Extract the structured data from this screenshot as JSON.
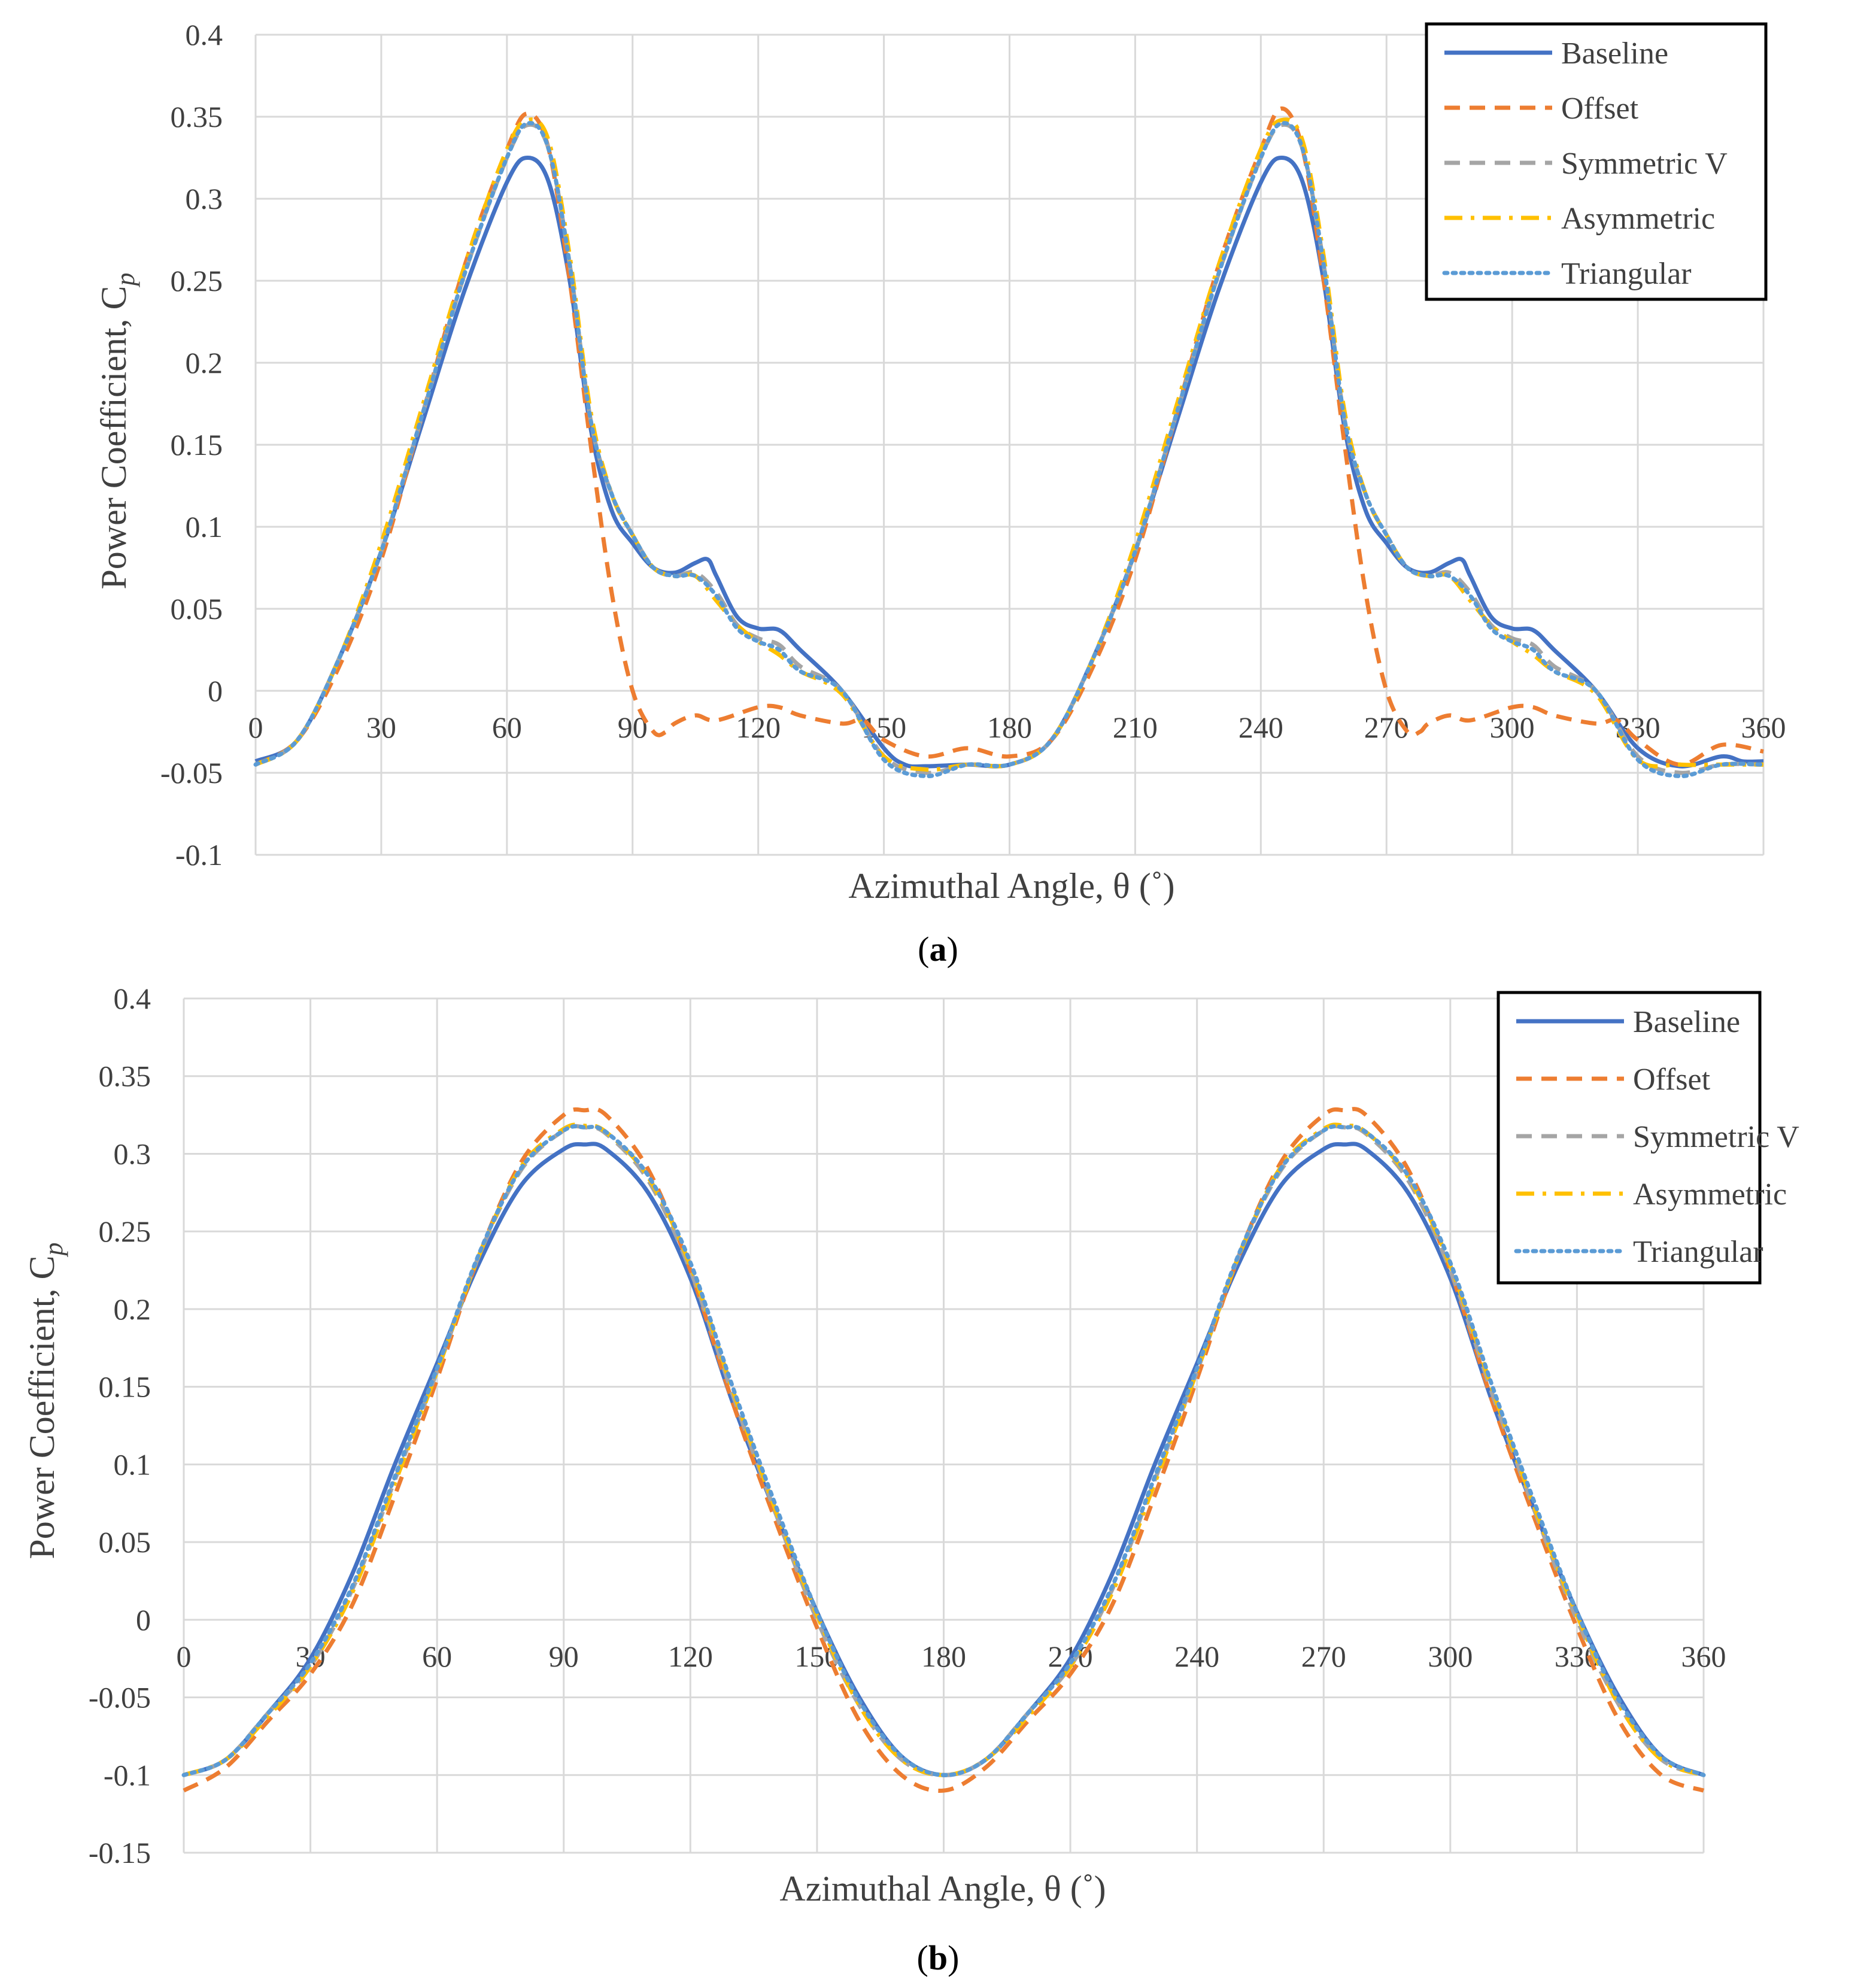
{
  "colors": {
    "Baseline": "#4472C4",
    "Offset": "#ED7D31",
    "Symmetric V": "#A5A5A5",
    "Asymmetric": "#FFC000",
    "Triangular": "#5B9BD5",
    "grid": "#D9D9D9",
    "axis_text": "#404040"
  },
  "chart_data": [
    {
      "type": "line",
      "caption_letter": "a",
      "xlabel": "Azimuthal Angle, θ (˚)",
      "ylabel": "Power Coefficient, C",
      "ylabel_sub": "p",
      "xlim": [
        0,
        360
      ],
      "ylim": [
        -0.1,
        0.4
      ],
      "x_ticks": [
        "0",
        "30",
        "60",
        "90",
        "120",
        "150",
        "180",
        "210",
        "240",
        "270",
        "300",
        "330",
        "360"
      ],
      "y_ticks": [
        "-0.1",
        "-0.05",
        "0",
        "0.05",
        "0.1",
        "0.15",
        "0.2",
        "0.25",
        "0.3",
        "0.35",
        "0.4"
      ],
      "legend": [
        "Baseline",
        "Offset",
        "Symmetric V",
        "Asymmetric",
        "Triangular"
      ],
      "series": [
        {
          "name": "Baseline",
          "style": "solid",
          "x": [
            0,
            10,
            20,
            30,
            40,
            50,
            60,
            65,
            70,
            75,
            80,
            85,
            90,
            95,
            100,
            105,
            108,
            110,
            115,
            120,
            125,
            130,
            140,
            150,
            155,
            160,
            170,
            180,
            190,
            200,
            210,
            220,
            230,
            240,
            245,
            250,
            255,
            260,
            265,
            270,
            275,
            280,
            285,
            288,
            290,
            295,
            300,
            305,
            310,
            320,
            330,
            340,
            350,
            355,
            360
          ],
          "y": [
            -0.043,
            -0.03,
            0.02,
            0.085,
            0.165,
            0.245,
            0.31,
            0.325,
            0.31,
            0.25,
            0.16,
            0.11,
            0.09,
            0.075,
            0.072,
            0.078,
            0.08,
            0.07,
            0.045,
            0.038,
            0.037,
            0.025,
            0.0,
            -0.035,
            -0.045,
            -0.046,
            -0.045,
            -0.045,
            -0.03,
            0.02,
            0.085,
            0.165,
            0.245,
            0.31,
            0.325,
            0.31,
            0.25,
            0.16,
            0.11,
            0.09,
            0.075,
            0.072,
            0.078,
            0.08,
            0.07,
            0.045,
            0.038,
            0.037,
            0.025,
            0.0,
            -0.035,
            -0.046,
            -0.04,
            -0.043,
            -0.043
          ]
        },
        {
          "name": "Offset",
          "style": "dashed",
          "x": [
            0,
            10,
            20,
            30,
            40,
            50,
            60,
            65,
            70,
            75,
            80,
            85,
            90,
            95,
            98,
            100,
            105,
            110,
            120,
            125,
            130,
            140,
            145,
            150,
            160,
            170,
            180,
            190,
            200,
            210,
            220,
            230,
            240,
            245,
            250,
            255,
            260,
            265,
            270,
            275,
            278,
            280,
            285,
            290,
            300,
            305,
            310,
            320,
            325,
            330,
            340,
            350,
            360
          ],
          "y": [
            -0.045,
            -0.03,
            0.015,
            0.08,
            0.17,
            0.26,
            0.33,
            0.352,
            0.33,
            0.25,
            0.15,
            0.06,
            0.0,
            -0.025,
            -0.025,
            -0.02,
            -0.015,
            -0.018,
            -0.01,
            -0.01,
            -0.015,
            -0.02,
            -0.018,
            -0.03,
            -0.04,
            -0.035,
            -0.04,
            -0.03,
            0.015,
            0.08,
            0.17,
            0.26,
            0.33,
            0.355,
            0.33,
            0.25,
            0.15,
            0.06,
            0.0,
            -0.025,
            -0.025,
            -0.02,
            -0.015,
            -0.018,
            -0.01,
            -0.01,
            -0.015,
            -0.02,
            -0.018,
            -0.03,
            -0.045,
            -0.033,
            -0.037
          ]
        },
        {
          "name": "Symmetric V",
          "style": "dashed",
          "x": [
            0,
            10,
            20,
            30,
            40,
            50,
            60,
            65,
            70,
            75,
            80,
            85,
            90,
            95,
            100,
            105,
            110,
            115,
            120,
            125,
            130,
            140,
            150,
            160,
            170,
            180,
            190,
            200,
            210,
            220,
            230,
            240,
            245,
            250,
            255,
            260,
            265,
            270,
            275,
            280,
            285,
            290,
            295,
            300,
            305,
            310,
            320,
            330,
            340,
            350,
            360
          ],
          "y": [
            -0.045,
            -0.03,
            0.02,
            0.085,
            0.17,
            0.255,
            0.325,
            0.345,
            0.33,
            0.26,
            0.165,
            0.12,
            0.095,
            0.075,
            0.07,
            0.072,
            0.06,
            0.04,
            0.032,
            0.028,
            0.015,
            0.0,
            -0.04,
            -0.05,
            -0.045,
            -0.045,
            -0.03,
            0.02,
            0.085,
            0.17,
            0.255,
            0.325,
            0.345,
            0.33,
            0.26,
            0.165,
            0.12,
            0.095,
            0.075,
            0.07,
            0.072,
            0.06,
            0.04,
            0.032,
            0.028,
            0.015,
            0.0,
            -0.04,
            -0.05,
            -0.045,
            -0.045
          ]
        },
        {
          "name": "Asymmetric",
          "style": "dashdot",
          "x": [
            0,
            10,
            20,
            30,
            40,
            50,
            60,
            65,
            70,
            75,
            80,
            85,
            90,
            95,
            100,
            105,
            110,
            115,
            120,
            125,
            130,
            140,
            150,
            160,
            170,
            180,
            190,
            200,
            210,
            220,
            230,
            240,
            245,
            250,
            255,
            260,
            265,
            270,
            275,
            280,
            285,
            290,
            295,
            300,
            305,
            310,
            320,
            330,
            340,
            350,
            360
          ],
          "y": [
            -0.045,
            -0.03,
            0.02,
            0.09,
            0.175,
            0.26,
            0.33,
            0.348,
            0.335,
            0.265,
            0.17,
            0.12,
            0.095,
            0.075,
            0.07,
            0.07,
            0.055,
            0.04,
            0.03,
            0.022,
            0.012,
            -0.002,
            -0.04,
            -0.048,
            -0.045,
            -0.045,
            -0.03,
            0.02,
            0.09,
            0.175,
            0.26,
            0.33,
            0.348,
            0.335,
            0.265,
            0.17,
            0.12,
            0.095,
            0.075,
            0.07,
            0.07,
            0.055,
            0.04,
            0.03,
            0.022,
            0.012,
            -0.002,
            -0.042,
            -0.045,
            -0.045,
            -0.045
          ]
        },
        {
          "name": "Triangular",
          "style": "dotted",
          "x": [
            0,
            10,
            20,
            30,
            40,
            50,
            60,
            65,
            70,
            75,
            80,
            85,
            90,
            95,
            100,
            105,
            110,
            115,
            120,
            125,
            130,
            140,
            150,
            160,
            170,
            180,
            190,
            200,
            210,
            220,
            230,
            240,
            245,
            250,
            255,
            260,
            265,
            270,
            275,
            280,
            285,
            290,
            295,
            300,
            305,
            310,
            320,
            330,
            340,
            350,
            360
          ],
          "y": [
            -0.045,
            -0.03,
            0.02,
            0.085,
            0.17,
            0.255,
            0.325,
            0.346,
            0.33,
            0.26,
            0.165,
            0.12,
            0.095,
            0.075,
            0.07,
            0.07,
            0.058,
            0.038,
            0.03,
            0.025,
            0.012,
            0.0,
            -0.042,
            -0.052,
            -0.045,
            -0.045,
            -0.03,
            0.02,
            0.085,
            0.17,
            0.255,
            0.325,
            0.346,
            0.33,
            0.26,
            0.165,
            0.12,
            0.095,
            0.075,
            0.07,
            0.07,
            0.058,
            0.038,
            0.03,
            0.025,
            0.012,
            0.0,
            -0.042,
            -0.052,
            -0.045,
            -0.045
          ]
        }
      ]
    },
    {
      "type": "line",
      "caption_letter": "b",
      "xlabel": "Azimuthal Angle, θ (˚)",
      "ylabel": "Power Coefficient, C",
      "ylabel_sub": "p",
      "xlim": [
        0,
        360
      ],
      "ylim": [
        -0.15,
        0.4
      ],
      "x_ticks": [
        "0",
        "30",
        "60",
        "90",
        "120",
        "150",
        "180",
        "210",
        "240",
        "270",
        "300",
        "330",
        "360"
      ],
      "y_ticks": [
        "-0.15",
        "-0.1",
        "-0.05",
        "0",
        "0.05",
        "0.1",
        "0.15",
        "0.2",
        "0.25",
        "0.3",
        "0.35",
        "0.4"
      ],
      "legend": [
        "Baseline",
        "Offset",
        "Symmetric V",
        "Asymmetric",
        "Triangular"
      ],
      "series": [
        {
          "name": "Baseline",
          "style": "solid",
          "x": [
            0,
            10,
            20,
            30,
            40,
            50,
            60,
            70,
            80,
            90,
            95,
            100,
            110,
            120,
            130,
            140,
            150,
            160,
            170,
            180,
            190,
            200,
            210,
            220,
            230,
            240,
            250,
            260,
            270,
            275,
            280,
            290,
            300,
            310,
            320,
            330,
            340,
            350,
            360
          ],
          "y": [
            -0.1,
            -0.09,
            -0.06,
            -0.025,
            0.03,
            0.1,
            0.165,
            0.23,
            0.28,
            0.303,
            0.306,
            0.303,
            0.275,
            0.22,
            0.14,
            0.07,
            0.005,
            -0.05,
            -0.088,
            -0.1,
            -0.09,
            -0.06,
            -0.025,
            0.03,
            0.1,
            0.165,
            0.23,
            0.28,
            0.303,
            0.306,
            0.303,
            0.275,
            0.22,
            0.14,
            0.07,
            0.005,
            -0.05,
            -0.088,
            -0.1
          ]
        },
        {
          "name": "Offset",
          "style": "dashed",
          "x": [
            0,
            10,
            20,
            30,
            40,
            50,
            60,
            70,
            80,
            90,
            95,
            100,
            110,
            120,
            130,
            140,
            150,
            160,
            170,
            180,
            190,
            200,
            210,
            220,
            230,
            240,
            250,
            260,
            270,
            275,
            280,
            290,
            300,
            310,
            320,
            330,
            340,
            350,
            360
          ],
          "y": [
            -0.11,
            -0.095,
            -0.065,
            -0.035,
            0.01,
            0.08,
            0.155,
            0.235,
            0.295,
            0.325,
            0.328,
            0.325,
            0.29,
            0.225,
            0.14,
            0.065,
            -0.005,
            -0.065,
            -0.1,
            -0.11,
            -0.095,
            -0.065,
            -0.035,
            0.01,
            0.08,
            0.155,
            0.235,
            0.295,
            0.325,
            0.328,
            0.325,
            0.29,
            0.225,
            0.14,
            0.065,
            -0.005,
            -0.065,
            -0.1,
            -0.11
          ]
        },
        {
          "name": "Symmetric V",
          "style": "dashed",
          "x": [
            0,
            10,
            20,
            30,
            40,
            50,
            60,
            70,
            80,
            90,
            95,
            100,
            110,
            120,
            130,
            140,
            150,
            160,
            170,
            180,
            190,
            200,
            210,
            220,
            230,
            240,
            250,
            260,
            270,
            275,
            280,
            290,
            300,
            310,
            320,
            330,
            340,
            350,
            360
          ],
          "y": [
            -0.1,
            -0.09,
            -0.06,
            -0.03,
            0.02,
            0.09,
            0.16,
            0.235,
            0.29,
            0.315,
            0.317,
            0.313,
            0.283,
            0.225,
            0.145,
            0.07,
            0.0,
            -0.055,
            -0.09,
            -0.1,
            -0.09,
            -0.06,
            -0.03,
            0.02,
            0.09,
            0.16,
            0.235,
            0.29,
            0.315,
            0.317,
            0.313,
            0.283,
            0.225,
            0.145,
            0.07,
            0.0,
            -0.055,
            -0.09,
            -0.1
          ]
        },
        {
          "name": "Asymmetric",
          "style": "dashdot",
          "x": [
            0,
            10,
            20,
            30,
            40,
            50,
            60,
            70,
            80,
            90,
            95,
            100,
            110,
            120,
            130,
            140,
            150,
            160,
            170,
            180,
            190,
            200,
            210,
            220,
            230,
            240,
            250,
            260,
            270,
            275,
            280,
            290,
            300,
            310,
            320,
            330,
            340,
            350,
            360
          ],
          "y": [
            -0.1,
            -0.09,
            -0.062,
            -0.03,
            0.018,
            0.088,
            0.16,
            0.235,
            0.292,
            0.316,
            0.318,
            0.314,
            0.285,
            0.228,
            0.148,
            0.072,
            0.003,
            -0.055,
            -0.09,
            -0.1,
            -0.09,
            -0.062,
            -0.03,
            0.018,
            0.088,
            0.16,
            0.235,
            0.292,
            0.316,
            0.318,
            0.314,
            0.285,
            0.228,
            0.148,
            0.072,
            0.003,
            -0.055,
            -0.09,
            -0.1
          ]
        },
        {
          "name": "Triangular",
          "style": "dotted",
          "x": [
            0,
            10,
            20,
            30,
            40,
            50,
            60,
            70,
            80,
            90,
            95,
            100,
            110,
            120,
            130,
            140,
            150,
            160,
            170,
            180,
            190,
            200,
            210,
            220,
            230,
            240,
            250,
            260,
            270,
            275,
            280,
            290,
            300,
            310,
            320,
            330,
            340,
            350,
            360
          ],
          "y": [
            -0.1,
            -0.09,
            -0.06,
            -0.028,
            0.022,
            0.092,
            0.162,
            0.236,
            0.291,
            0.315,
            0.317,
            0.314,
            0.286,
            0.23,
            0.15,
            0.075,
            0.005,
            -0.052,
            -0.088,
            -0.1,
            -0.09,
            -0.06,
            -0.028,
            0.022,
            0.092,
            0.162,
            0.236,
            0.291,
            0.315,
            0.317,
            0.314,
            0.286,
            0.23,
            0.15,
            0.075,
            0.005,
            -0.052,
            -0.088,
            -0.1
          ]
        }
      ]
    }
  ]
}
